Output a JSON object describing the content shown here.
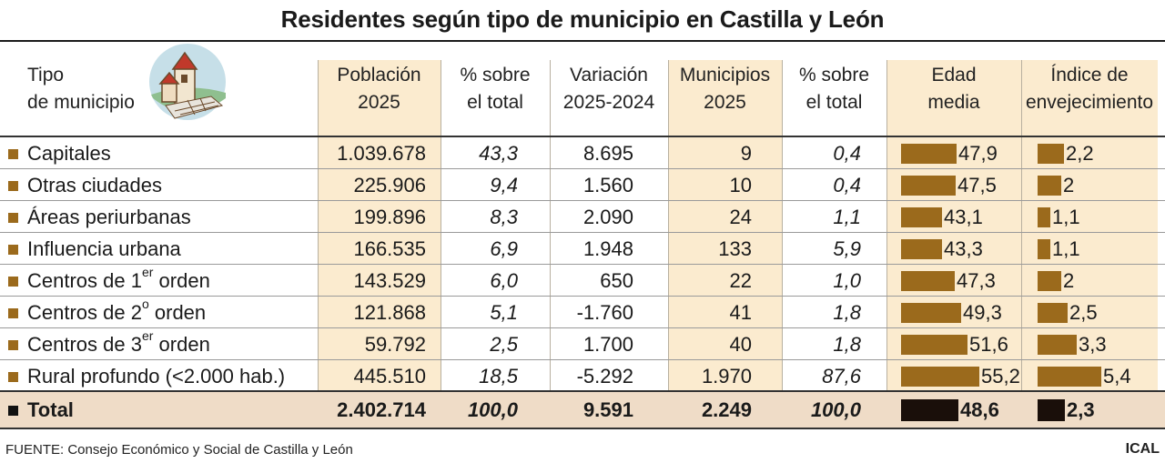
{
  "title": "Residentes según tipo de municipio en Castilla y León",
  "headers": {
    "tipo": [
      "Tipo",
      "de municipio"
    ],
    "poblacion": [
      "Población",
      "2025"
    ],
    "pct_pob": [
      "% sobre",
      "el total"
    ],
    "variacion": [
      "Variación",
      "2025-2024"
    ],
    "municipios": [
      "Municipios",
      "2025"
    ],
    "pct_mun": [
      "% sobre",
      "el total"
    ],
    "edad": [
      "Edad",
      "media"
    ],
    "indice": [
      "Índice de",
      "envejecimiento"
    ]
  },
  "rows": [
    {
      "name": "Capitales",
      "sup": "",
      "suffix": "",
      "poblacion": "1.039.678",
      "pct_pob": "43,3",
      "variacion": "8.695",
      "municipios": "9",
      "pct_mun": "0,4",
      "edad": "47,9",
      "edad_value": 47.9,
      "indice": "2,2",
      "indice_value": 2.2
    },
    {
      "name": "Otras ciudades",
      "sup": "",
      "suffix": "",
      "poblacion": "225.906",
      "pct_pob": "9,4",
      "variacion": "1.560",
      "municipios": "10",
      "pct_mun": "0,4",
      "edad": "47,5",
      "edad_value": 47.5,
      "indice": "2",
      "indice_value": 2.0
    },
    {
      "name": "Áreas periurbanas",
      "sup": "",
      "suffix": "",
      "poblacion": "199.896",
      "pct_pob": "8,3",
      "variacion": "2.090",
      "municipios": "24",
      "pct_mun": "1,1",
      "edad": "43,1",
      "edad_value": 43.1,
      "indice": "1,1",
      "indice_value": 1.1
    },
    {
      "name": "Influencia urbana",
      "sup": "",
      "suffix": "",
      "poblacion": "166.535",
      "pct_pob": "6,9",
      "variacion": "1.948",
      "municipios": "133",
      "pct_mun": "5,9",
      "edad": "43,3",
      "edad_value": 43.3,
      "indice": "1,1",
      "indice_value": 1.1
    },
    {
      "name": "Centros de 1",
      "sup": "er",
      "suffix": " orden",
      "poblacion": "143.529",
      "pct_pob": "6,0",
      "variacion": "650",
      "municipios": "22",
      "pct_mun": "1,0",
      "edad": "47,3",
      "edad_value": 47.3,
      "indice": "2",
      "indice_value": 2.0
    },
    {
      "name": "Centros de 2",
      "sup": "o",
      "suffix": " orden",
      "poblacion": "121.868",
      "pct_pob": "5,1",
      "variacion": "-1.760",
      "municipios": "41",
      "pct_mun": "1,8",
      "edad": "49,3",
      "edad_value": 49.3,
      "indice": "2,5",
      "indice_value": 2.5
    },
    {
      "name": "Centros de 3",
      "sup": "er",
      "suffix": " orden",
      "poblacion": "59.792",
      "pct_pob": "2,5",
      "variacion": "1.700",
      "municipios": "40",
      "pct_mun": "1,8",
      "edad": "51,6",
      "edad_value": 51.6,
      "indice": "3,3",
      "indice_value": 3.3
    },
    {
      "name": "Rural profundo (<2.000 hab.)",
      "sup": "",
      "suffix": "",
      "poblacion": "445.510",
      "pct_pob": "18,5",
      "variacion": "-5.292",
      "municipios": "1.970",
      "pct_mun": "87,6",
      "edad": "55,2",
      "edad_value": 55.2,
      "indice": "5,4",
      "indice_value": 5.4
    }
  ],
  "total": {
    "name": "Total",
    "poblacion": "2.402.714",
    "pct_pob": "100,0",
    "variacion": "9.591",
    "municipios": "2.249",
    "pct_mun": "100,0",
    "edad": "48,6",
    "edad_value": 48.6,
    "indice": "2,3",
    "indice_value": 2.3
  },
  "colors": {
    "bar": "#9b6a1c",
    "total_bar": "#1a0f0a",
    "shade": "#fbebcf",
    "total_row": "#efdcc7"
  },
  "source": "FUENTE: Consejo Económico y Social de Castilla y León",
  "credit": "ICAL"
}
